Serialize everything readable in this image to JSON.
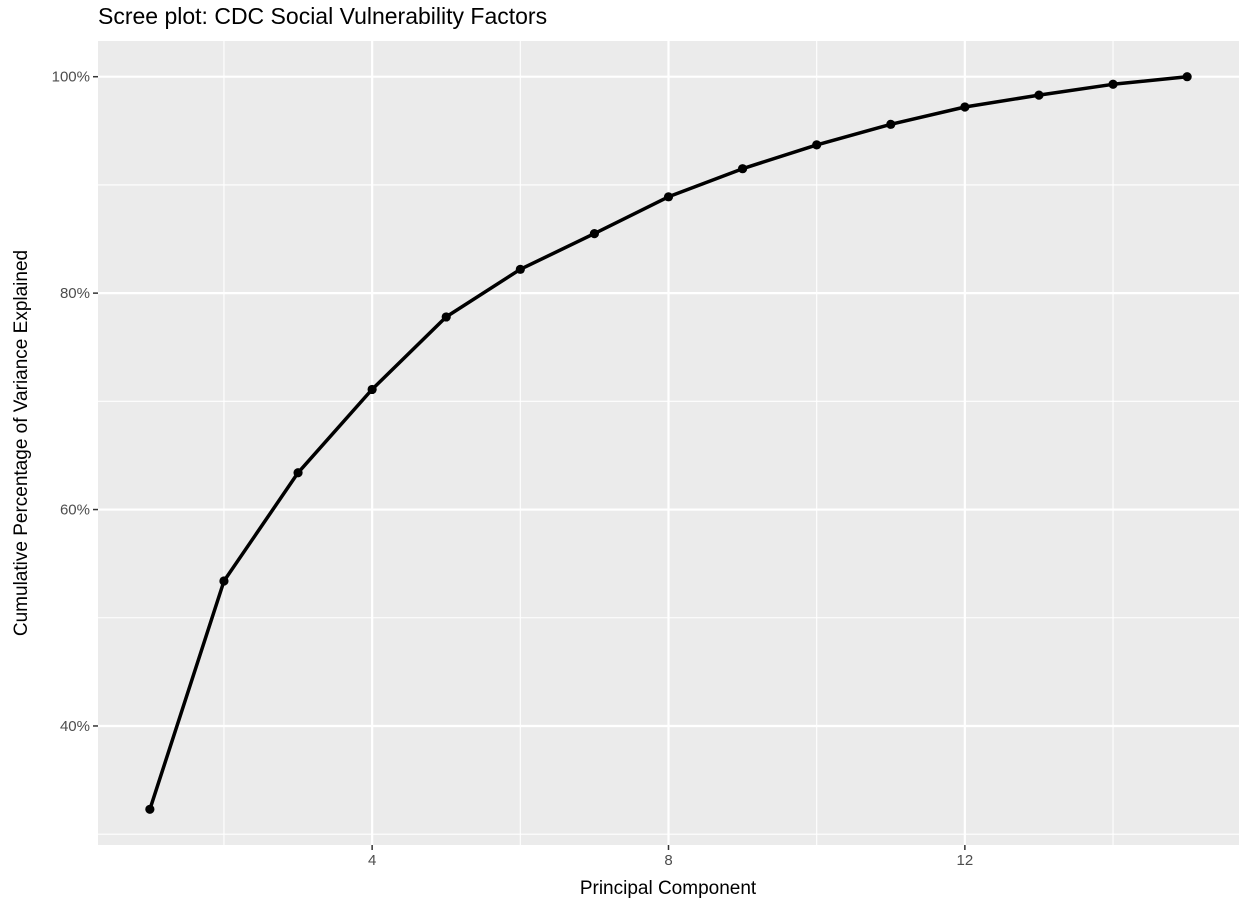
{
  "chart_data": {
    "type": "line",
    "title": "Scree plot: CDC Social Vulnerability Factors",
    "xlabel": "Principal Component",
    "ylabel": "Cumulative Percentage of Variance Explained",
    "x": [
      1,
      2,
      3,
      4,
      5,
      6,
      7,
      8,
      9,
      10,
      11,
      12,
      13,
      14,
      15
    ],
    "series": [
      {
        "values": [
          32.3,
          53.4,
          63.4,
          71.1,
          77.8,
          82.2,
          85.5,
          88.9,
          91.5,
          93.7,
          95.6,
          97.2,
          98.3,
          99.3,
          100.0
        ]
      }
    ],
    "xlim": [
      0.3,
      15.7
    ],
    "ylim": [
      29.0,
      103.3
    ],
    "x_major_ticks": [
      4,
      8,
      12
    ],
    "x_minor_ticks": [
      2,
      6,
      10,
      14
    ],
    "y_major_ticks": [
      40,
      60,
      80,
      100
    ],
    "y_minor_ticks": [
      30,
      50,
      70,
      90
    ],
    "x_tick_labels": [
      "4",
      "8",
      "12"
    ],
    "y_tick_labels": [
      "40%",
      "60%",
      "80%",
      "100%"
    ],
    "grid": true,
    "legend": "none",
    "colors": {
      "panel_background": "#ebebeb",
      "grid_line": "#ffffff",
      "series_line": "#000000",
      "tick_label": "#4d4d4d",
      "tick_mark": "#333333"
    }
  }
}
